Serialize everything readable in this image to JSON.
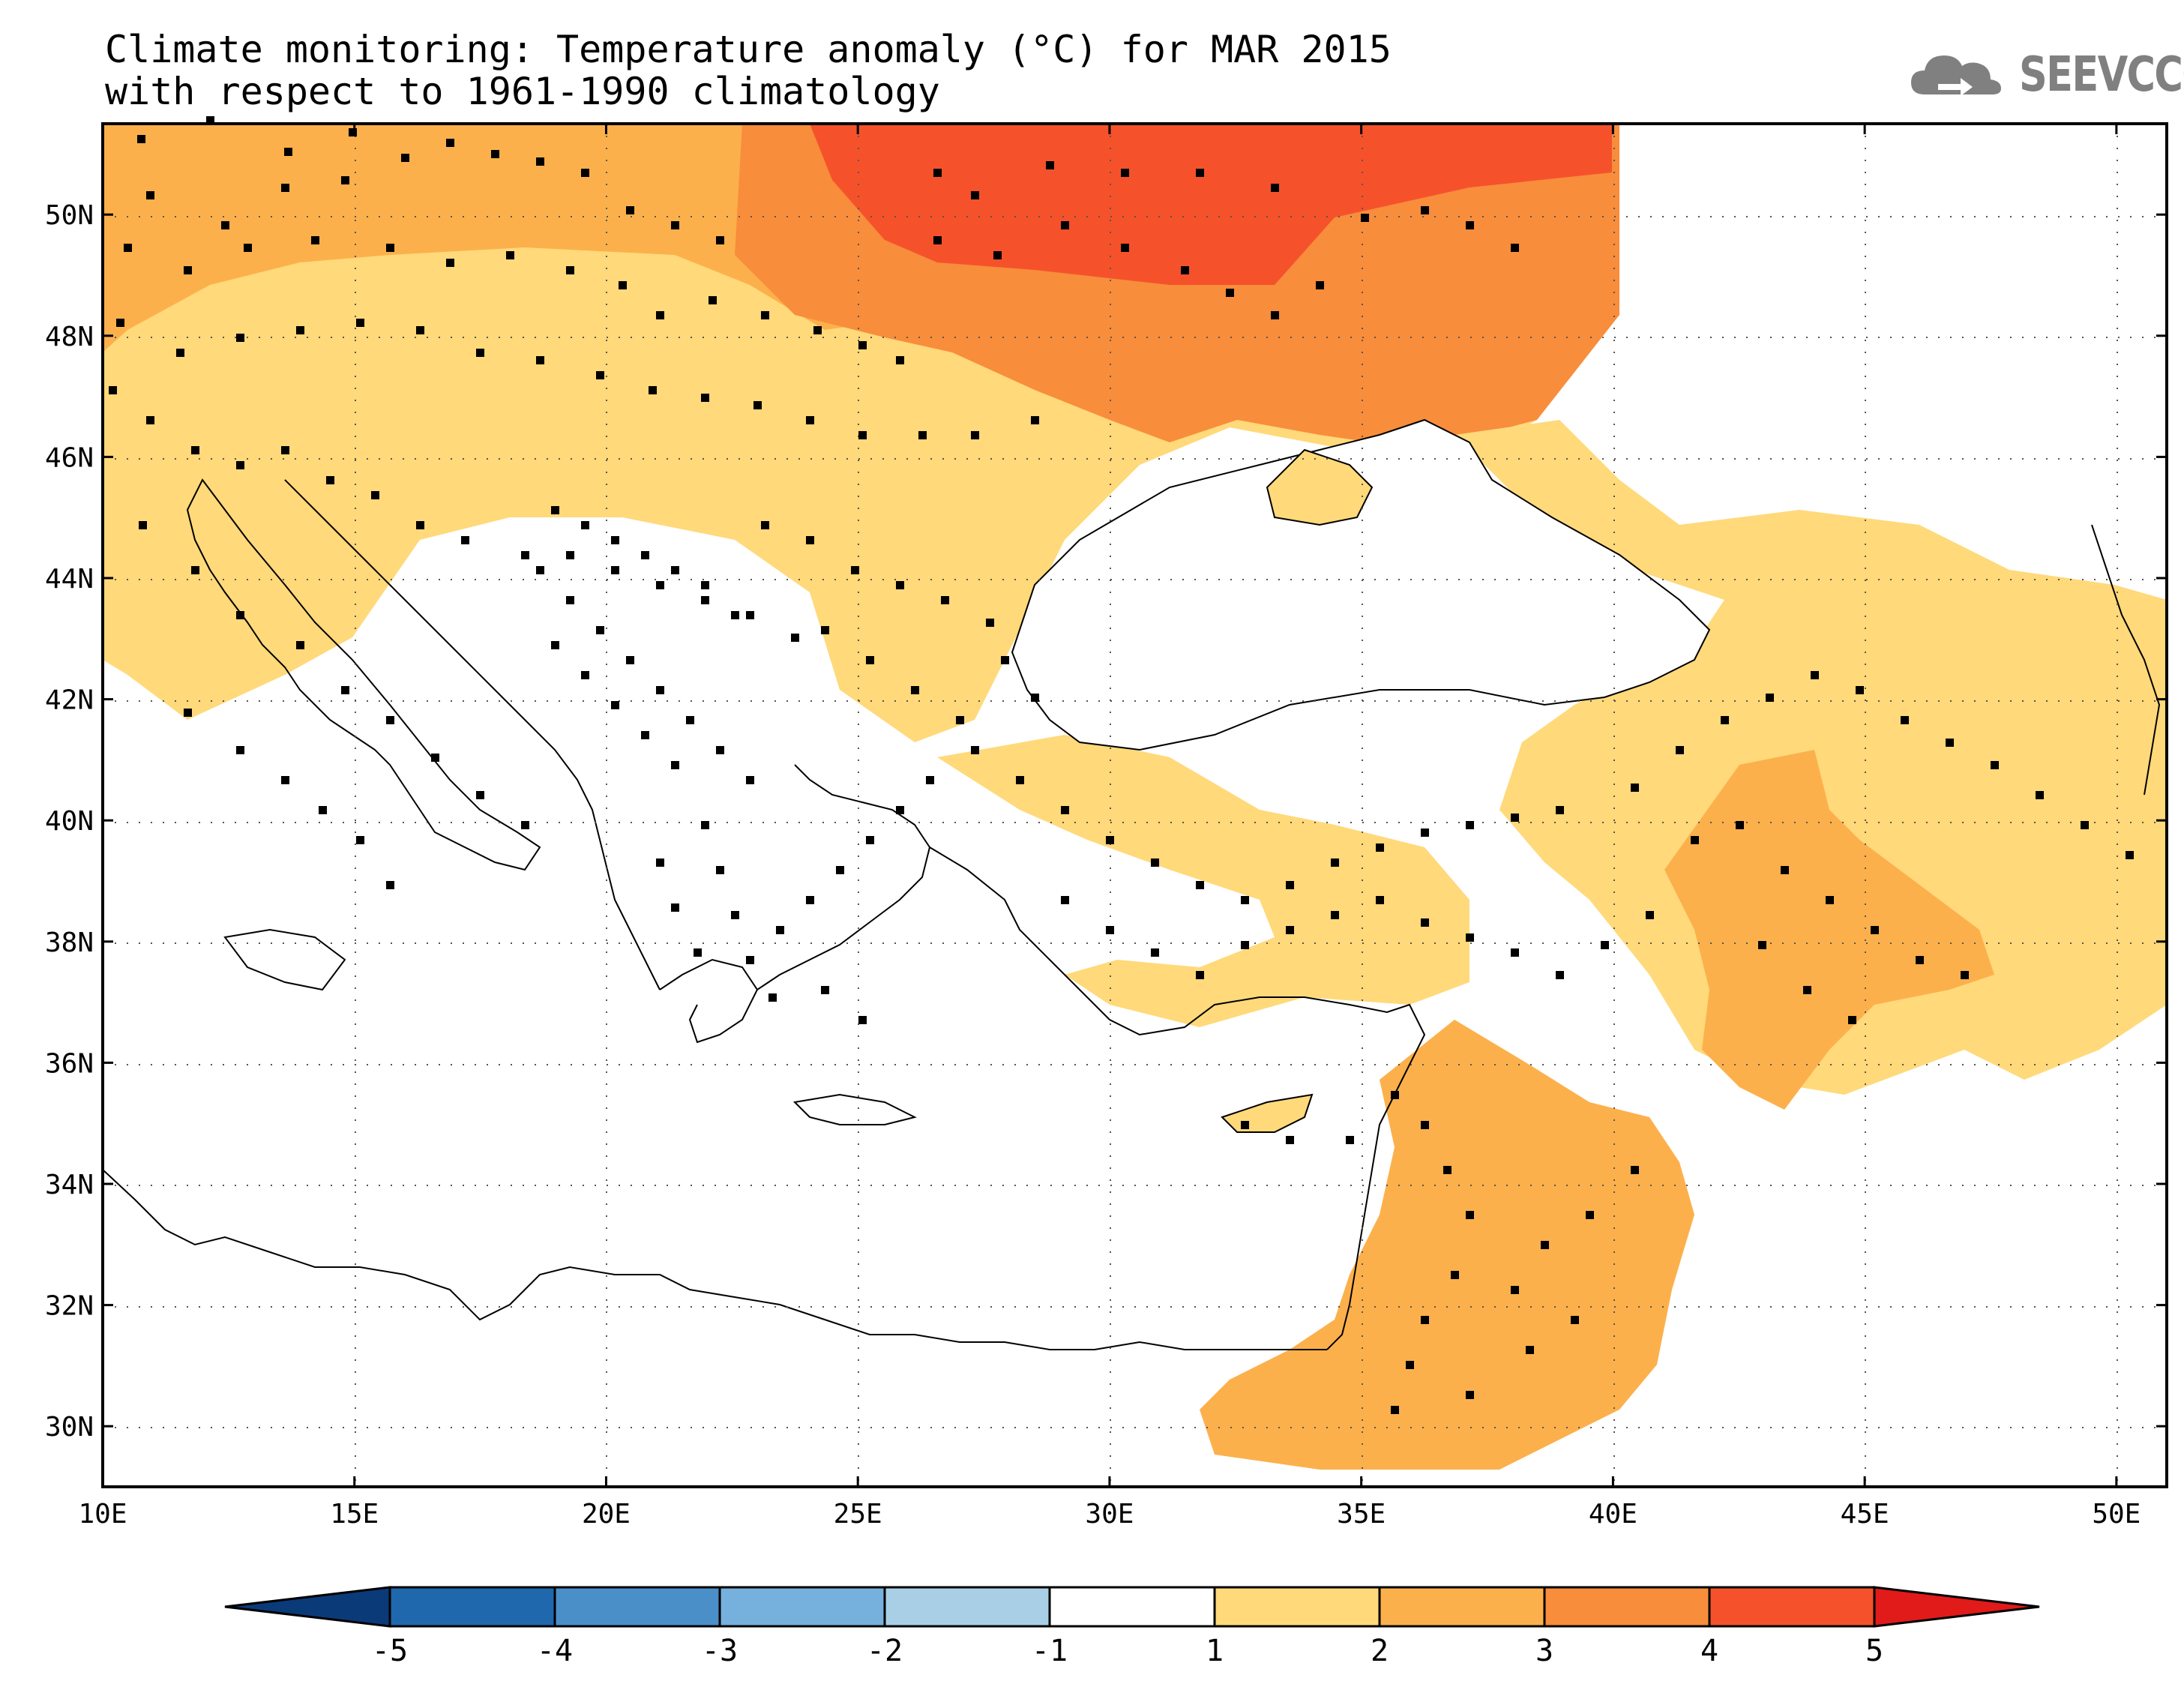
{
  "title": {
    "line1": "Climate monitoring: Temperature anomaly (°C) for MAR 2015",
    "line2": "with respect to 1961-1990 climatology"
  },
  "logo": {
    "text": "SEEVCCC",
    "icon": "cloud-icon",
    "color": "#808080"
  },
  "map": {
    "lon_range": [
      10,
      51
    ],
    "lat_range": [
      29,
      51.5
    ],
    "lon_ticks": [
      10,
      15,
      20,
      25,
      30,
      35,
      40,
      45,
      50
    ],
    "lat_ticks": [
      30,
      32,
      34,
      36,
      38,
      40,
      42,
      44,
      46,
      48,
      50
    ],
    "lon_tick_labels": [
      "10E",
      "15E",
      "20E",
      "25E",
      "30E",
      "35E",
      "40E",
      "45E",
      "50E"
    ],
    "lat_tick_labels": [
      "30N",
      "32N",
      "34N",
      "36N",
      "38N",
      "40N",
      "42N",
      "44N",
      "46N",
      "48N",
      "50N"
    ],
    "grid": "dotted"
  },
  "colorbar": {
    "labels": [
      "-5",
      "-4",
      "-3",
      "-2",
      "-1",
      "1",
      "2",
      "3",
      "4",
      "5"
    ],
    "colors": [
      "#0b3a78",
      "#1f68ad",
      "#4b8fc9",
      "#76b0dd",
      "#a8cfe6",
      "#ffffff",
      "#ffd97a",
      "#fcb04c",
      "#f88d3c",
      "#f5522b",
      "#e11a1a"
    ],
    "extend": "both"
  }
}
